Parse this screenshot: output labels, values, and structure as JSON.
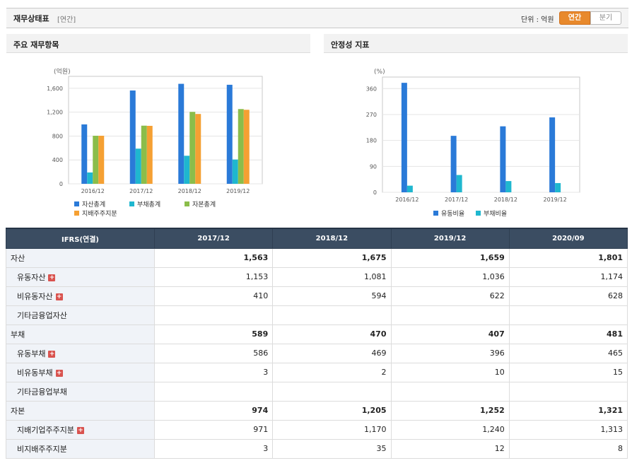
{
  "header": {
    "title": "재무상태표",
    "subtitle": "[연간]",
    "unit_label": "단위 : 억원",
    "toggle_annual": "연간",
    "toggle_quarter": "분기"
  },
  "panels": {
    "left_title": "주요 재무항목",
    "right_title": "안정성 지표"
  },
  "chart_data": [
    {
      "type": "bar",
      "ylabel": "(억원)",
      "ylim": [
        0,
        1800
      ],
      "yticks": [
        0,
        400,
        800,
        1200,
        1600
      ],
      "ytick_labels": [
        "0",
        "400",
        "800",
        "1,200",
        "1,600"
      ],
      "categories": [
        "2016/12",
        "2017/12",
        "2018/12",
        "2019/12"
      ],
      "legend": "bottom",
      "series": [
        {
          "name": "자산총계",
          "color": "#2a7ad8",
          "values": [
            995,
            1563,
            1675,
            1659
          ]
        },
        {
          "name": "부채총계",
          "color": "#1fb7cf",
          "values": [
            190,
            589,
            470,
            407
          ]
        },
        {
          "name": "자본총계",
          "color": "#8bbd4a",
          "values": [
            805,
            974,
            1205,
            1252
          ]
        },
        {
          "name": "지배주주지분",
          "color": "#f5a033",
          "values": [
            805,
            971,
            1170,
            1240
          ]
        }
      ]
    },
    {
      "type": "bar",
      "ylabel": "(%)",
      "ylim": [
        0,
        400
      ],
      "yticks": [
        0,
        90,
        180,
        270,
        360
      ],
      "ytick_labels": [
        "0",
        "90",
        "180",
        "270",
        "360"
      ],
      "categories": [
        "2016/12",
        "2017/12",
        "2018/12",
        "2019/12"
      ],
      "legend": "bottom",
      "series": [
        {
          "name": "유동비율",
          "color": "#2a7ad8",
          "values": [
            380,
            196,
            229,
            260
          ]
        },
        {
          "name": "부채비율",
          "color": "#1fb7cf",
          "values": [
            23,
            60,
            39,
            32
          ]
        }
      ]
    }
  ],
  "table": {
    "headers": [
      "IFRS(연결)",
      "2017/12",
      "2018/12",
      "2019/12",
      "2020/09"
    ],
    "rows": [
      {
        "label": "자산",
        "sub": false,
        "plus": false,
        "bold": true,
        "values": [
          "1,563",
          "1,675",
          "1,659",
          "1,801"
        ]
      },
      {
        "label": "유동자산",
        "sub": true,
        "plus": true,
        "bold": false,
        "values": [
          "1,153",
          "1,081",
          "1,036",
          "1,174"
        ]
      },
      {
        "label": "비유동자산",
        "sub": true,
        "plus": true,
        "bold": false,
        "values": [
          "410",
          "594",
          "622",
          "628"
        ]
      },
      {
        "label": "기타금융업자산",
        "sub": true,
        "plus": false,
        "bold": false,
        "values": [
          "",
          "",
          "",
          ""
        ]
      },
      {
        "label": "부채",
        "sub": false,
        "plus": false,
        "bold": true,
        "values": [
          "589",
          "470",
          "407",
          "481"
        ]
      },
      {
        "label": "유동부채",
        "sub": true,
        "plus": true,
        "bold": false,
        "values": [
          "586",
          "469",
          "396",
          "465"
        ]
      },
      {
        "label": "비유동부채",
        "sub": true,
        "plus": true,
        "bold": false,
        "values": [
          "3",
          "2",
          "10",
          "15"
        ]
      },
      {
        "label": "기타금융업부채",
        "sub": true,
        "plus": false,
        "bold": false,
        "values": [
          "",
          "",
          "",
          ""
        ]
      },
      {
        "label": "자본",
        "sub": false,
        "plus": false,
        "bold": true,
        "values": [
          "974",
          "1,205",
          "1,252",
          "1,321"
        ]
      },
      {
        "label": "지배기업주주지분",
        "sub": true,
        "plus": true,
        "bold": false,
        "values": [
          "971",
          "1,170",
          "1,240",
          "1,313"
        ]
      },
      {
        "label": "비지배주주지분",
        "sub": true,
        "plus": false,
        "bold": false,
        "values": [
          "3",
          "35",
          "12",
          "8"
        ]
      }
    ]
  }
}
